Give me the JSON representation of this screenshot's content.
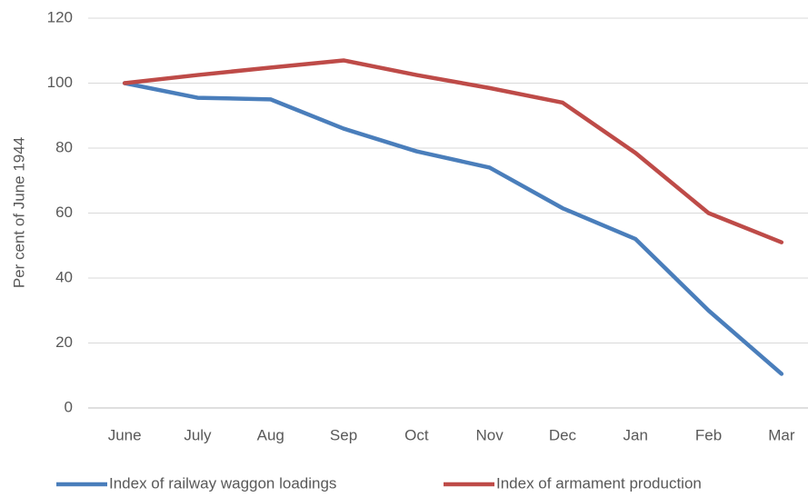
{
  "chart_data": {
    "type": "line",
    "y_label": "Per cent of June 1944",
    "categories": [
      "June",
      "July",
      "Aug",
      "Sep",
      "Oct",
      "Nov",
      "Dec",
      "Jan",
      "Feb",
      "Mar"
    ],
    "series": [
      {
        "name": "Index of railway waggon loadings",
        "color": "#4a7ebb",
        "values": [
          100,
          95.5,
          95,
          86,
          79,
          74,
          61.5,
          52,
          30,
          10.5
        ]
      },
      {
        "name": "Index of armament production",
        "color": "#be4b48",
        "values": [
          100,
          102.5,
          104.8,
          107,
          102.5,
          98.5,
          94,
          78.5,
          60,
          51
        ]
      }
    ],
    "ylim": [
      0,
      120
    ],
    "yticks": [
      0,
      20,
      40,
      60,
      80,
      100,
      120
    ],
    "grid": true,
    "legend": "bottom"
  }
}
